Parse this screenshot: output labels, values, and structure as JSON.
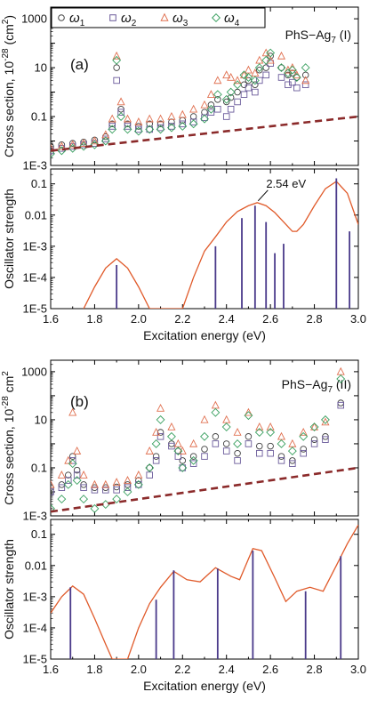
{
  "chart_data": [
    {
      "panel": "(a)",
      "type": "scatter",
      "title": "PhS−Ag7 (I)",
      "ylabel": "Cross section, 10^-28 (cm^2)",
      "yscale": "log",
      "ylim": [
        0.001,
        3000
      ],
      "xlim": [
        1.6,
        3.0
      ],
      "y_ticklabels": [
        "1E-3",
        "0.1",
        "10",
        "1000"
      ],
      "legend": [
        "ω1",
        "ω2",
        "ω3",
        "ω4"
      ],
      "legend_position": "top-left",
      "series": [
        {
          "name": "ω1",
          "marker": "circle",
          "color": "#404040",
          "x": [
            1.6,
            1.65,
            1.7,
            1.75,
            1.8,
            1.85,
            1.88,
            1.9,
            1.92,
            1.95,
            2.0,
            2.05,
            2.1,
            2.15,
            2.2,
            2.25,
            2.3,
            2.33,
            2.36,
            2.4,
            2.42,
            2.45,
            2.48,
            2.5,
            2.53,
            2.55,
            2.58,
            2.6,
            2.65,
            2.68,
            2.7,
            2.72,
            2.76
          ],
          "y": [
            0.006,
            0.007,
            0.008,
            0.009,
            0.011,
            0.015,
            0.05,
            10,
            0.2,
            0.05,
            0.04,
            0.05,
            0.05,
            0.06,
            0.07,
            0.1,
            0.15,
            0.3,
            0.5,
            0.4,
            0.6,
            1,
            2,
            3,
            2,
            8,
            10,
            30,
            10,
            5,
            6,
            4,
            5
          ]
        },
        {
          "name": "ω2",
          "marker": "square",
          "color": "#6a5a9a",
          "x": [
            1.6,
            1.65,
            1.7,
            1.75,
            1.8,
            1.85,
            1.88,
            1.9,
            1.92,
            1.95,
            2.0,
            2.05,
            2.1,
            2.15,
            2.2,
            2.25,
            2.3,
            2.33,
            2.36,
            2.4,
            2.42,
            2.45,
            2.48,
            2.5,
            2.53,
            2.55,
            2.58,
            2.6,
            2.65,
            2.68,
            2.7,
            2.72,
            2.76
          ],
          "y": [
            0.004,
            0.005,
            0.006,
            0.007,
            0.008,
            0.012,
            0.04,
            3,
            0.15,
            0.04,
            0.03,
            0.03,
            0.035,
            0.04,
            0.05,
            0.06,
            0.09,
            0.15,
            0.2,
            0.1,
            0.2,
            0.4,
            0.8,
            1.5,
            1,
            3,
            5,
            15,
            4,
            2,
            2.5,
            1.5,
            2
          ]
        },
        {
          "name": "ω3",
          "marker": "triangle",
          "color": "#e07050",
          "x": [
            1.6,
            1.65,
            1.7,
            1.75,
            1.8,
            1.85,
            1.88,
            1.9,
            1.92,
            1.95,
            2.0,
            2.05,
            2.1,
            2.15,
            2.2,
            2.25,
            2.3,
            2.33,
            2.36,
            2.4,
            2.42,
            2.45,
            2.48,
            2.5,
            2.53,
            2.55,
            2.58,
            2.6,
            2.65,
            2.68,
            2.7,
            2.72,
            2.76
          ],
          "y": [
            0.005,
            0.006,
            0.007,
            0.008,
            0.01,
            0.018,
            0.08,
            30,
            0.4,
            0.08,
            0.06,
            0.08,
            0.08,
            0.1,
            0.12,
            0.2,
            0.3,
            0.8,
            3,
            5,
            4,
            3,
            5,
            8,
            6,
            20,
            40,
            20,
            30,
            8,
            10,
            5,
            3
          ]
        },
        {
          "name": "ω4",
          "marker": "diamond",
          "color": "#3aa060",
          "x": [
            1.6,
            1.65,
            1.7,
            1.75,
            1.8,
            1.85,
            1.88,
            1.9,
            1.92,
            1.95,
            2.0,
            2.05,
            2.1,
            2.15,
            2.2,
            2.25,
            2.3,
            2.33,
            2.36,
            2.4,
            2.42,
            2.45,
            2.48,
            2.5,
            2.53,
            2.55,
            2.58,
            2.6,
            2.65,
            2.68,
            2.7,
            2.72,
            2.76
          ],
          "y": [
            0.003,
            0.004,
            0.005,
            0.006,
            0.007,
            0.01,
            0.03,
            20,
            0.1,
            0.03,
            0.025,
            0.03,
            0.03,
            0.035,
            0.04,
            0.05,
            0.08,
            0.2,
            0.8,
            0.5,
            1,
            2,
            5,
            4,
            3,
            10,
            20,
            40,
            10,
            6,
            8,
            4,
            10
          ]
        },
        {
          "name": "",
          "type": "line",
          "style": "dashed",
          "color": "#8b2a2a",
          "x": [
            1.6,
            3.0
          ],
          "y": [
            0.004,
            0.1
          ]
        }
      ]
    },
    {
      "panel": "(a)",
      "type": "line",
      "xlabel": "Excitation energy (eV)",
      "ylabel": "Oscillator strength",
      "yscale": "log",
      "ylim": [
        1e-05,
        0.3
      ],
      "xlim": [
        1.6,
        3.0
      ],
      "x_ticklabels": [
        "1.6",
        "1.8",
        "2.0",
        "2.2",
        "2.4",
        "2.6",
        "2.8",
        "3.0"
      ],
      "y_ticklabels": [
        "1E-5",
        "1E-4",
        "1E-3",
        "0.01",
        "0.1"
      ],
      "annotation": "2.54 eV",
      "series": [
        {
          "name": "",
          "type": "line",
          "color": "#e05a2a",
          "x": [
            1.75,
            1.8,
            1.85,
            1.9,
            1.95,
            2.0,
            2.05,
            2.2,
            2.25,
            2.3,
            2.35,
            2.4,
            2.45,
            2.5,
            2.54,
            2.58,
            2.62,
            2.66,
            2.7,
            2.72,
            2.75,
            2.8,
            2.85,
            2.9,
            2.95,
            3.0
          ],
          "y": [
            1e-05,
            5e-05,
            0.0002,
            0.0004,
            0.0002,
            5e-05,
            1e-05,
            1e-05,
            0.0001,
            0.0007,
            0.002,
            0.006,
            0.013,
            0.02,
            0.025,
            0.02,
            0.012,
            0.006,
            0.003,
            0.003,
            0.005,
            0.02,
            0.07,
            0.12,
            0.05,
            0.005
          ]
        },
        {
          "name": "",
          "type": "stem",
          "color": "#4a3a8a",
          "x": [
            1.9,
            2.35,
            2.47,
            2.53,
            2.58,
            2.62,
            2.66,
            2.9,
            2.96
          ],
          "y": [
            0.00025,
            0.001,
            0.008,
            0.02,
            0.006,
            0.0006,
            0.0012,
            0.15,
            0.003
          ]
        }
      ]
    },
    {
      "panel": "(b)",
      "type": "scatter",
      "title": "PhS−Ag7 (II)",
      "ylabel": "Cross section, 10^-28 cm^2",
      "yscale": "log",
      "ylim": [
        0.001,
        3000
      ],
      "xlim": [
        1.6,
        3.0
      ],
      "y_ticklabels": [
        "1E-3",
        "0.1",
        "10",
        "1000"
      ],
      "series": [
        {
          "name": "ω1",
          "marker": "circle",
          "color": "#404040",
          "x": [
            1.6,
            1.65,
            1.68,
            1.7,
            1.72,
            1.75,
            1.8,
            1.85,
            1.9,
            1.95,
            2.0,
            2.05,
            2.08,
            2.1,
            2.15,
            2.18,
            2.2,
            2.25,
            2.3,
            2.35,
            2.4,
            2.45,
            2.5,
            2.55,
            2.6,
            2.65,
            2.7,
            2.75,
            2.8,
            2.85,
            2.92
          ],
          "y": [
            0.015,
            0.02,
            0.05,
            0.3,
            0.08,
            0.02,
            0.015,
            0.015,
            0.016,
            0.02,
            0.03,
            0.1,
            0.3,
            3,
            1,
            0.5,
            0.2,
            0.3,
            0.6,
            2,
            1,
            0.4,
            2,
            0.8,
            0.8,
            0.3,
            0.2,
            0.6,
            1.5,
            2,
            50
          ]
        },
        {
          "name": "ω2",
          "marker": "square",
          "color": "#6a5a9a",
          "x": [
            1.6,
            1.65,
            1.68,
            1.7,
            1.72,
            1.75,
            1.8,
            1.85,
            1.9,
            1.95,
            2.0,
            2.05,
            2.08,
            2.1,
            2.15,
            2.18,
            2.2,
            2.25,
            2.3,
            2.35,
            2.4,
            2.45,
            2.5,
            2.55,
            2.6,
            2.65,
            2.7,
            2.75,
            2.8,
            2.85,
            2.92
          ],
          "y": [
            0.01,
            0.015,
            0.03,
            0.2,
            0.05,
            0.015,
            0.012,
            0.012,
            0.012,
            0.015,
            0.02,
            0.05,
            0.2,
            2,
            0.8,
            0.3,
            0.1,
            0.15,
            0.3,
            1,
            0.5,
            0.2,
            1,
            0.4,
            0.4,
            0.2,
            0.15,
            0.4,
            1,
            1.5,
            40
          ]
        },
        {
          "name": "ω3",
          "marker": "triangle",
          "color": "#e07050",
          "x": [
            1.6,
            1.65,
            1.68,
            1.7,
            1.72,
            1.75,
            1.8,
            1.85,
            1.9,
            1.95,
            2.0,
            2.05,
            2.08,
            2.1,
            2.15,
            2.18,
            2.2,
            2.25,
            2.3,
            2.35,
            2.4,
            2.45,
            2.5,
            2.55,
            2.6,
            2.65,
            2.7,
            2.75,
            2.8,
            2.85,
            2.92
          ],
          "y": [
            0.02,
            0.05,
            0.2,
            20,
            0.5,
            0.05,
            0.02,
            0.02,
            0.025,
            0.03,
            0.05,
            0.5,
            3,
            30,
            5,
            1,
            0.5,
            1,
            10,
            40,
            10,
            3,
            20,
            5,
            5,
            2,
            1,
            3,
            5,
            8,
            1000
          ]
        },
        {
          "name": "ω4",
          "marker": "diamond",
          "color": "#3aa060",
          "x": [
            1.6,
            1.65,
            1.68,
            1.7,
            1.72,
            1.75,
            1.8,
            1.85,
            1.9,
            1.95,
            2.0,
            2.05,
            2.08,
            2.1,
            2.15,
            2.18,
            2.2,
            2.25,
            2.3,
            2.35,
            2.4,
            2.45,
            2.5,
            2.55,
            2.6,
            2.65,
            2.7,
            2.75,
            2.8,
            2.85,
            2.92
          ],
          "y": [
            0.002,
            0.005,
            0.02,
            0.15,
            0.03,
            0.005,
            0.002,
            0.003,
            0.005,
            0.01,
            0.02,
            0.1,
            1,
            10,
            2,
            0.5,
            0.1,
            0.2,
            2,
            20,
            5,
            1,
            15,
            3,
            3,
            1,
            0.5,
            2,
            5,
            10,
            500
          ]
        },
        {
          "name": "",
          "type": "line",
          "style": "dashed",
          "color": "#8b2a2a",
          "x": [
            1.6,
            3.0
          ],
          "y": [
            0.0015,
            0.1
          ]
        }
      ]
    },
    {
      "panel": "(b)",
      "type": "line",
      "xlabel": "Excitation energy (eV)",
      "ylabel": "Oscillator strength",
      "yscale": "log",
      "ylim": [
        1e-05,
        0.3
      ],
      "xlim": [
        1.6,
        3.0
      ],
      "x_ticklabels": [
        "1.6",
        "1.8",
        "2.0",
        "2.2",
        "2.4",
        "2.6",
        "2.8",
        "3.0"
      ],
      "y_ticklabels": [
        "1E-5",
        "1E-4",
        "1E-3",
        "0.01",
        "0.1"
      ],
      "series": [
        {
          "name": "",
          "type": "line",
          "color": "#e05a2a",
          "x": [
            1.6,
            1.65,
            1.7,
            1.75,
            1.8,
            1.85,
            1.88,
            1.95,
            2.0,
            2.05,
            2.1,
            2.16,
            2.22,
            2.28,
            2.35,
            2.42,
            2.46,
            2.52,
            2.56,
            2.62,
            2.67,
            2.72,
            2.78,
            2.84,
            2.9,
            2.95,
            3.0
          ],
          "y": [
            0.0003,
            0.001,
            0.0022,
            0.0012,
            0.0002,
            3e-05,
            1e-05,
            1e-05,
            0.0001,
            0.0006,
            0.002,
            0.0065,
            0.0035,
            0.003,
            0.0085,
            0.0045,
            0.0035,
            0.035,
            0.03,
            0.004,
            0.0007,
            0.0015,
            0.002,
            0.0015,
            0.01,
            0.05,
            0.2
          ]
        },
        {
          "name": "",
          "type": "stem",
          "color": "#4a3a8a",
          "x": [
            1.69,
            2.08,
            2.16,
            2.36,
            2.52,
            2.76,
            2.92
          ],
          "y": [
            0.002,
            0.0008,
            0.007,
            0.008,
            0.03,
            0.0015,
            0.02
          ]
        }
      ]
    }
  ]
}
